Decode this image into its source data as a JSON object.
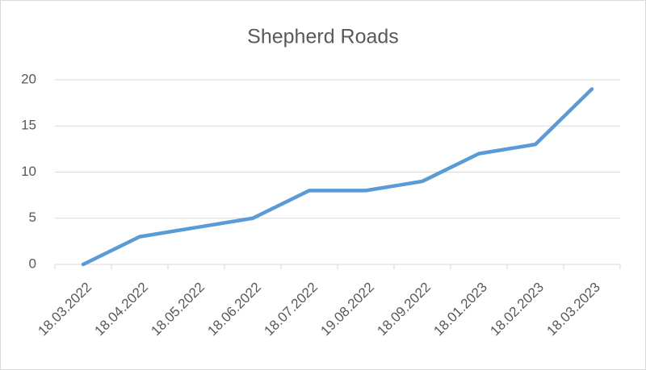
{
  "chart_data": {
    "type": "line",
    "title": "Shepherd Roads",
    "categories": [
      "18.03.2022",
      "18.04.2022",
      "18.05.2022",
      "18.06.2022",
      "18.07.2022",
      "19.08.2022",
      "18.09.2022",
      "18.01.2023",
      "18.02.2023",
      "18.03.2023"
    ],
    "values": [
      0,
      3,
      4,
      5,
      8,
      8,
      9,
      12,
      13,
      19
    ],
    "color": "#5b9bd5",
    "ylim": [
      0,
      20
    ],
    "yticks": [
      0,
      5,
      10,
      15,
      20
    ],
    "grid": true
  }
}
